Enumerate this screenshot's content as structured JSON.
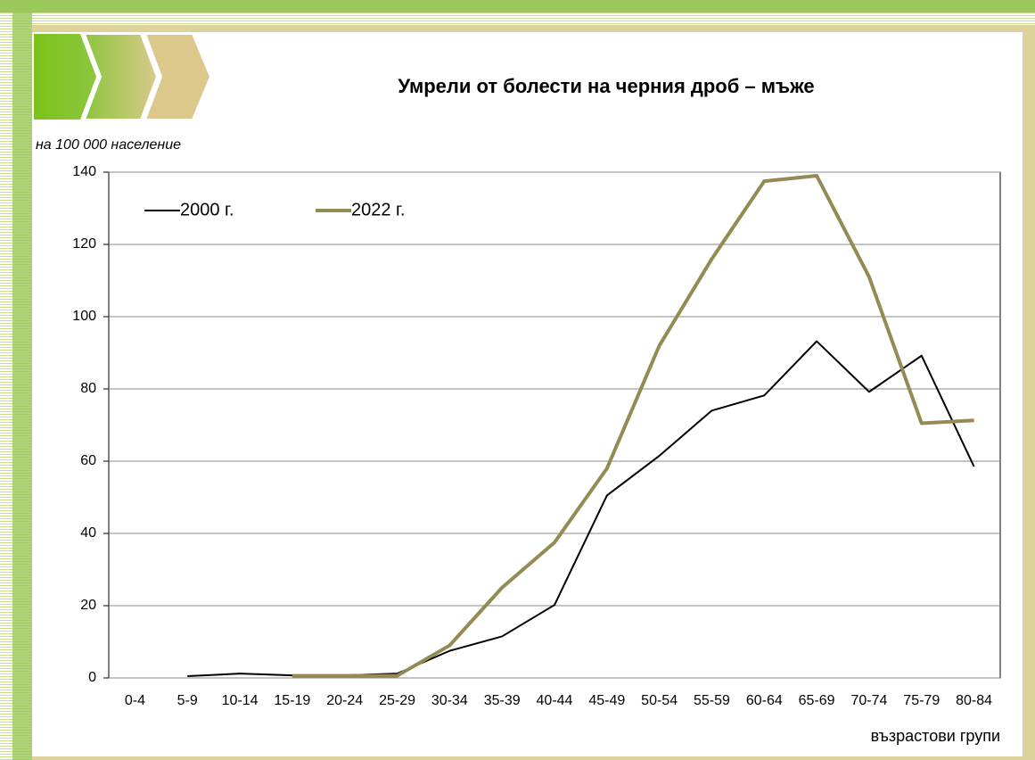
{
  "chart_data": {
    "type": "line",
    "title": "Умрели от болести на черния дроб – мъже",
    "y_label": "на 100 000 население",
    "x_label": "възрастови групи",
    "categories": [
      "0-4",
      "5-9",
      "10-14",
      "15-19",
      "20-24",
      "25-29",
      "30-34",
      "35-39",
      "40-44",
      "45-49",
      "50-54",
      "55-59",
      "60-64",
      "65-69",
      "70-74",
      "75-79",
      "80-84"
    ],
    "series": [
      {
        "name": "2000 г.",
        "color": "#000000",
        "values": [
          null,
          0.5,
          1.2,
          0.7,
          0.7,
          1.2,
          7.5,
          11.5,
          20.2,
          50.5,
          61.5,
          74,
          78.2,
          93.2,
          79.2,
          89.2,
          58.5
        ]
      },
      {
        "name": "2022 г.",
        "color": "#948a54",
        "values": [
          null,
          null,
          null,
          0.6,
          0.6,
          0.6,
          9,
          25,
          37.5,
          58,
          92,
          116,
          137.5,
          139,
          111,
          70.5,
          71.3
        ]
      }
    ],
    "ylim": [
      0,
      140
    ],
    "yticks": [
      0,
      20,
      40,
      60,
      80,
      100,
      120,
      140
    ],
    "grid": true,
    "legend": "top-left"
  }
}
